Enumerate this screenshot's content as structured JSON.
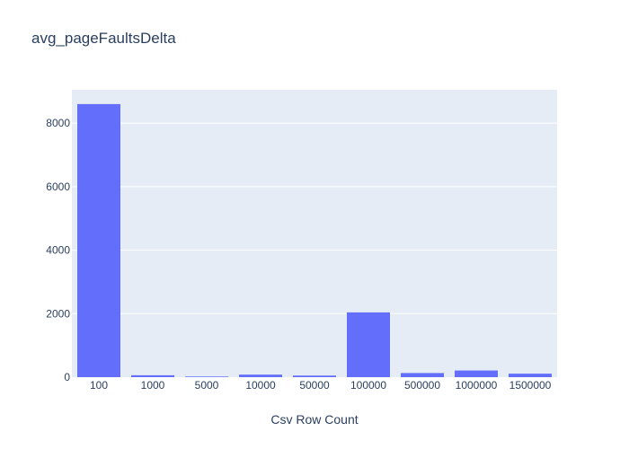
{
  "chart_data": {
    "type": "bar",
    "title": "avg_pageFaultsDelta",
    "xlabel": "Csv Row Count",
    "ylabel": "",
    "categories": [
      "100",
      "1000",
      "5000",
      "10000",
      "50000",
      "100000",
      "500000",
      "1000000",
      "1500000"
    ],
    "values": [
      8600,
      60,
      20,
      80,
      50,
      2040,
      130,
      210,
      110
    ],
    "ylim": [
      0,
      9050
    ],
    "yticks": [
      0,
      2000,
      4000,
      6000,
      8000
    ],
    "ytick_labels": [
      "0",
      "2000",
      "4000",
      "6000",
      "8000"
    ],
    "grid": true,
    "legend": "none",
    "colors": {
      "bar": "#636efa",
      "plot_background": "#e5ecf6",
      "gridline": "#ffffff",
      "text": "#2a3f5f"
    }
  }
}
